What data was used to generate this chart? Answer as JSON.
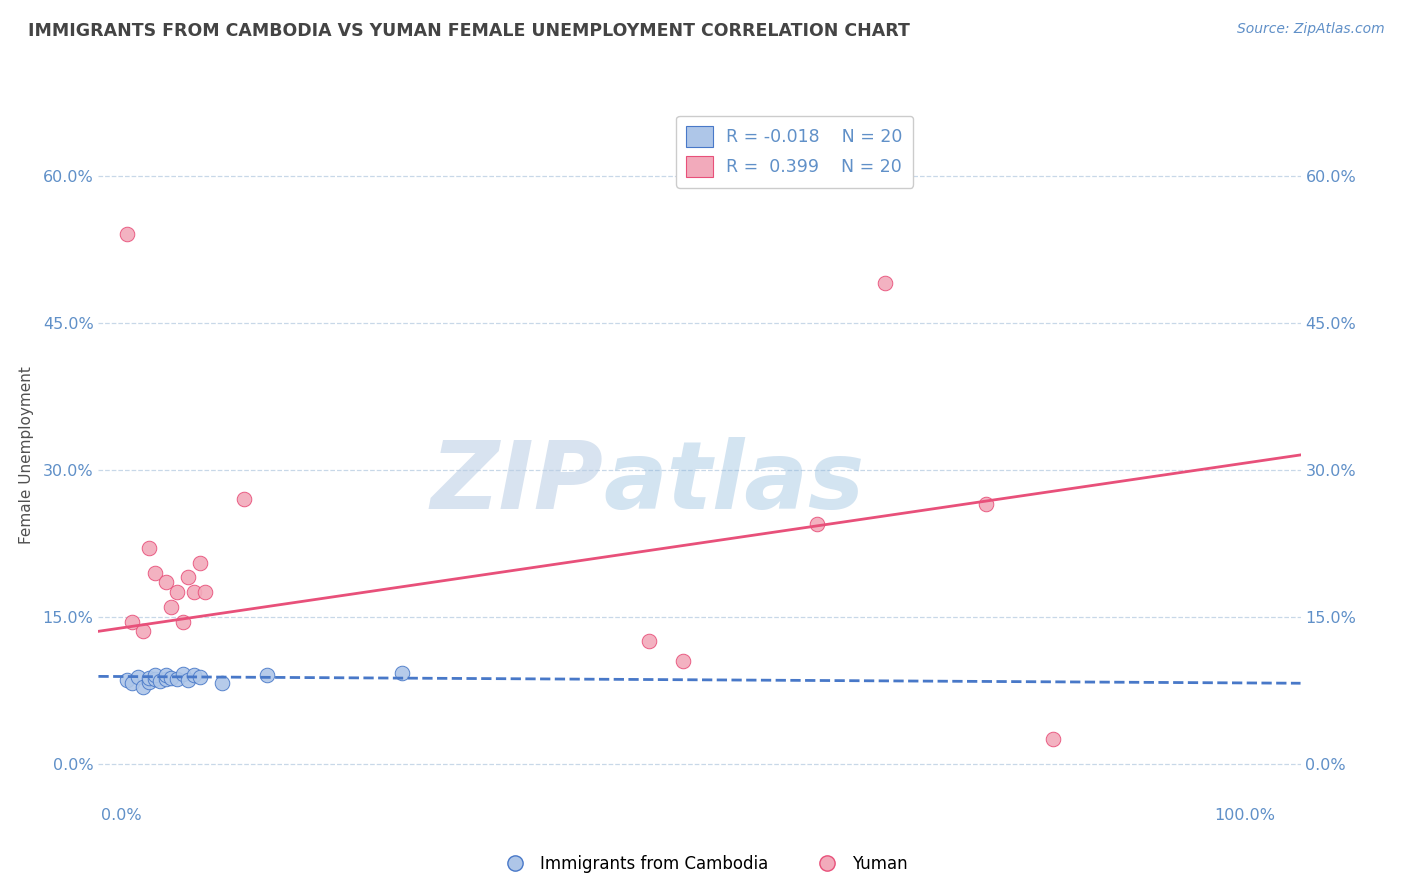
{
  "title": "IMMIGRANTS FROM CAMBODIA VS YUMAN FEMALE UNEMPLOYMENT CORRELATION CHART",
  "source": "Source: ZipAtlas.com",
  "ylabel": "Female Unemployment",
  "xlim": [
    -0.02,
    1.05
  ],
  "ylim": [
    -0.04,
    0.67
  ],
  "yticks": [
    0.0,
    0.15,
    0.3,
    0.45,
    0.6
  ],
  "ytick_labels": [
    "0.0%",
    "15.0%",
    "30.0%",
    "45.0%",
    "60.0%"
  ],
  "xticks": [
    0.0,
    1.0
  ],
  "xtick_labels": [
    "0.0%",
    "100.0%"
  ],
  "legend_r1": "R = -0.018",
  "legend_n1": "N = 20",
  "legend_r2": "R =  0.399",
  "legend_n2": "N = 20",
  "legend_label1": "Immigrants from Cambodia",
  "legend_label2": "Yuman",
  "watermark_zip": "ZIP",
  "watermark_atlas": "atlas",
  "blue_color": "#aec6e8",
  "pink_color": "#f2aabb",
  "blue_line_color": "#4878c8",
  "pink_line_color": "#e8507a",
  "title_color": "#444444",
  "axis_color": "#6090c8",
  "grid_color": "#c8d8e8",
  "background_color": "#ffffff",
  "blue_scatter_x": [
    0.005,
    0.01,
    0.015,
    0.02,
    0.025,
    0.025,
    0.03,
    0.03,
    0.035,
    0.04,
    0.04,
    0.045,
    0.05,
    0.055,
    0.06,
    0.065,
    0.07,
    0.09,
    0.13,
    0.25
  ],
  "blue_scatter_y": [
    0.085,
    0.082,
    0.088,
    0.078,
    0.083,
    0.087,
    0.086,
    0.09,
    0.084,
    0.086,
    0.09,
    0.087,
    0.086,
    0.091,
    0.085,
    0.09,
    0.088,
    0.082,
    0.09,
    0.092
  ],
  "pink_scatter_x": [
    0.005,
    0.01,
    0.02,
    0.025,
    0.03,
    0.04,
    0.045,
    0.05,
    0.055,
    0.06,
    0.065,
    0.07,
    0.075,
    0.11,
    0.47,
    0.5,
    0.62,
    0.68,
    0.77,
    0.83
  ],
  "pink_scatter_y": [
    0.54,
    0.145,
    0.135,
    0.22,
    0.195,
    0.185,
    0.16,
    0.175,
    0.145,
    0.19,
    0.175,
    0.205,
    0.175,
    0.27,
    0.125,
    0.105,
    0.245,
    0.49,
    0.265,
    0.025
  ],
  "blue_trend_y_start": 0.089,
  "blue_trend_y_end": 0.082,
  "pink_trend_y_start": 0.135,
  "pink_trend_y_end": 0.315
}
